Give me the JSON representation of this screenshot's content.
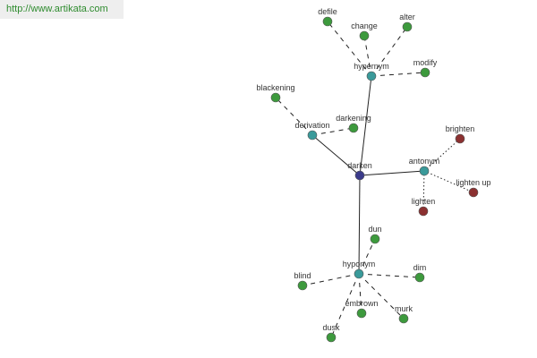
{
  "url": "http://www.artikata.com",
  "nodes": [
    {
      "label": "darken"
    },
    {
      "label": "hypernym"
    },
    {
      "label": "defile"
    },
    {
      "label": "change"
    },
    {
      "label": "alter"
    },
    {
      "label": "modify"
    },
    {
      "label": "derivation"
    },
    {
      "label": "blackening"
    },
    {
      "label": "darkening"
    },
    {
      "label": "antonym"
    },
    {
      "label": "brighten"
    },
    {
      "label": "lighten up"
    },
    {
      "label": "lighten"
    },
    {
      "label": "hyponym"
    },
    {
      "label": "dun"
    },
    {
      "label": "blind"
    },
    {
      "label": "dim"
    },
    {
      "label": "embrown"
    },
    {
      "label": "murk"
    },
    {
      "label": "dusk"
    }
  ]
}
